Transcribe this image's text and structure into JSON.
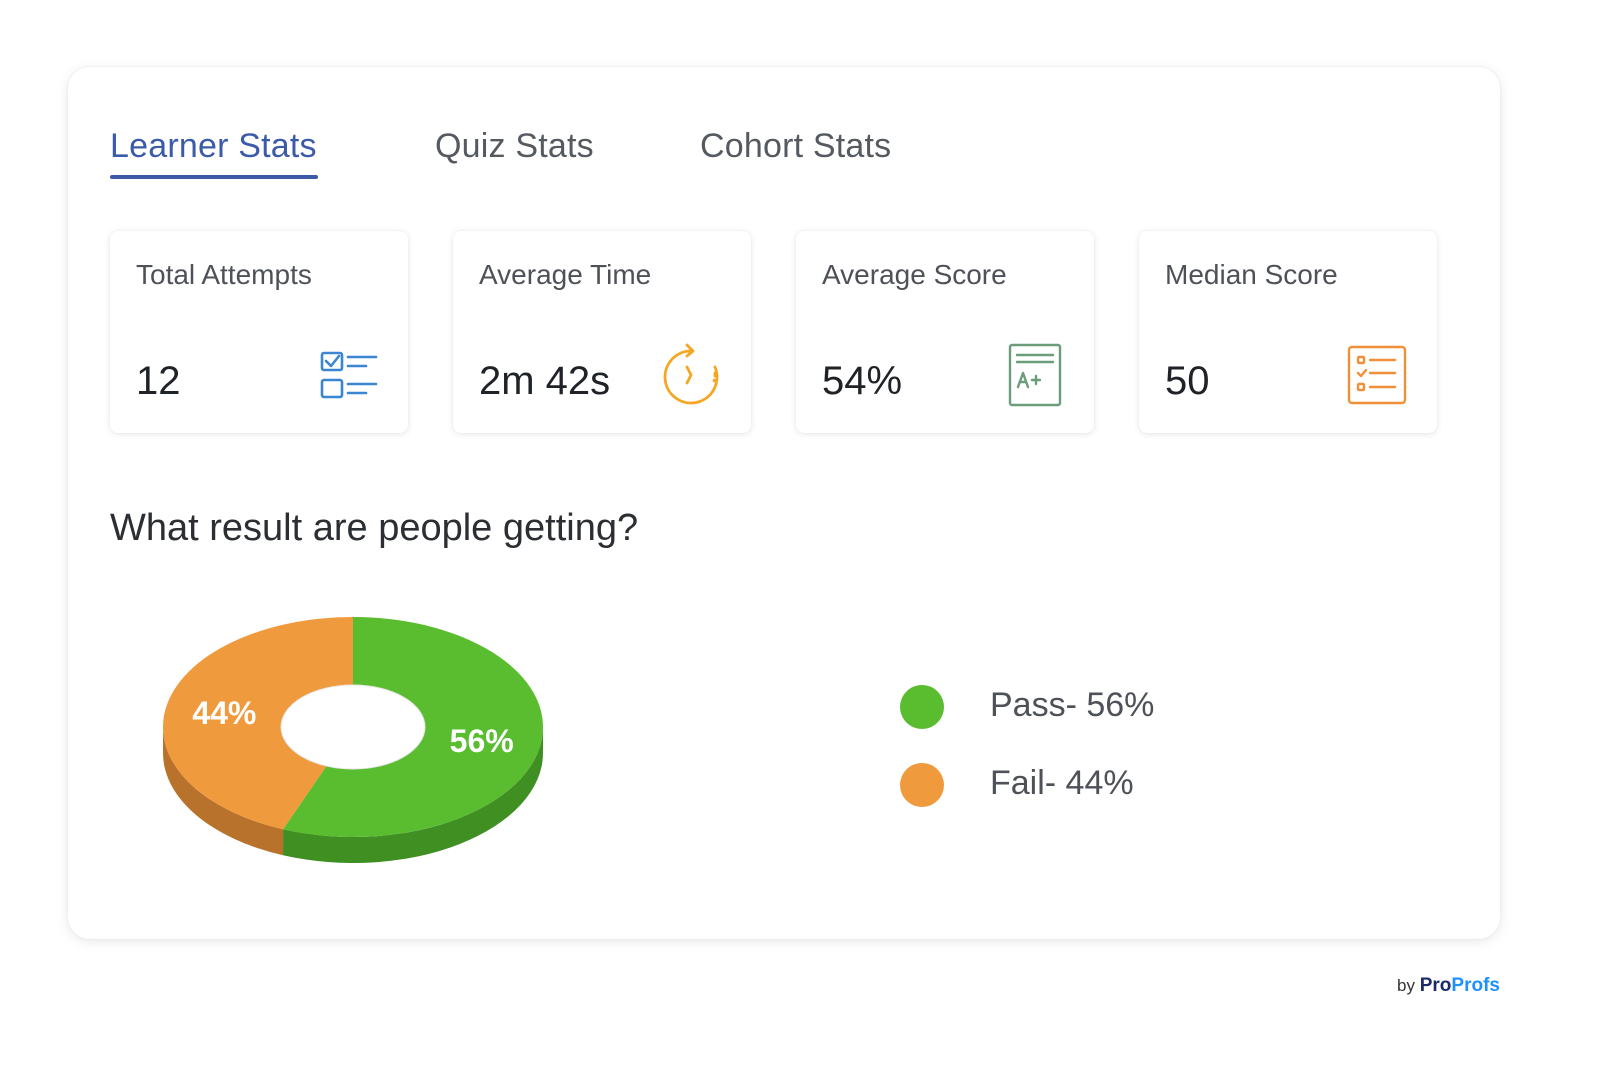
{
  "tabs": [
    {
      "label": "Learner Stats",
      "active": true
    },
    {
      "label": "Quiz Stats",
      "active": false
    },
    {
      "label": "Cohort Stats",
      "active": false
    }
  ],
  "stats": [
    {
      "title": "Total Attempts",
      "value": "12",
      "icon": "checklist-icon",
      "color": "#3a86d1"
    },
    {
      "title": "Average Time",
      "value": "2m 42s",
      "icon": "timer-icon",
      "color": "#f5a623"
    },
    {
      "title": "Average Score",
      "value": "54%",
      "icon": "grade-sheet-icon",
      "color": "#6a9e7a"
    },
    {
      "title": "Median Score",
      "value": "50",
      "icon": "list-document-icon",
      "color": "#f0913a"
    }
  ],
  "section_title": "What result are people getting?",
  "chart_data": {
    "type": "pie",
    "variant": "3d-donut",
    "slices": [
      {
        "label": "56%",
        "value": 56,
        "color": "#5abd2f",
        "side_color": "#3f8f22"
      },
      {
        "label": "44%",
        "value": 44,
        "color": "#f09a3e",
        "side_color": "#b8722c"
      }
    ]
  },
  "legend": [
    {
      "label": "Pass- 56%",
      "color": "#5abd2f"
    },
    {
      "label": "Fail- 44%",
      "color": "#f09a3e"
    }
  ],
  "byline": {
    "by": "by",
    "brand_a": "Pro",
    "brand_b": "Profs"
  }
}
